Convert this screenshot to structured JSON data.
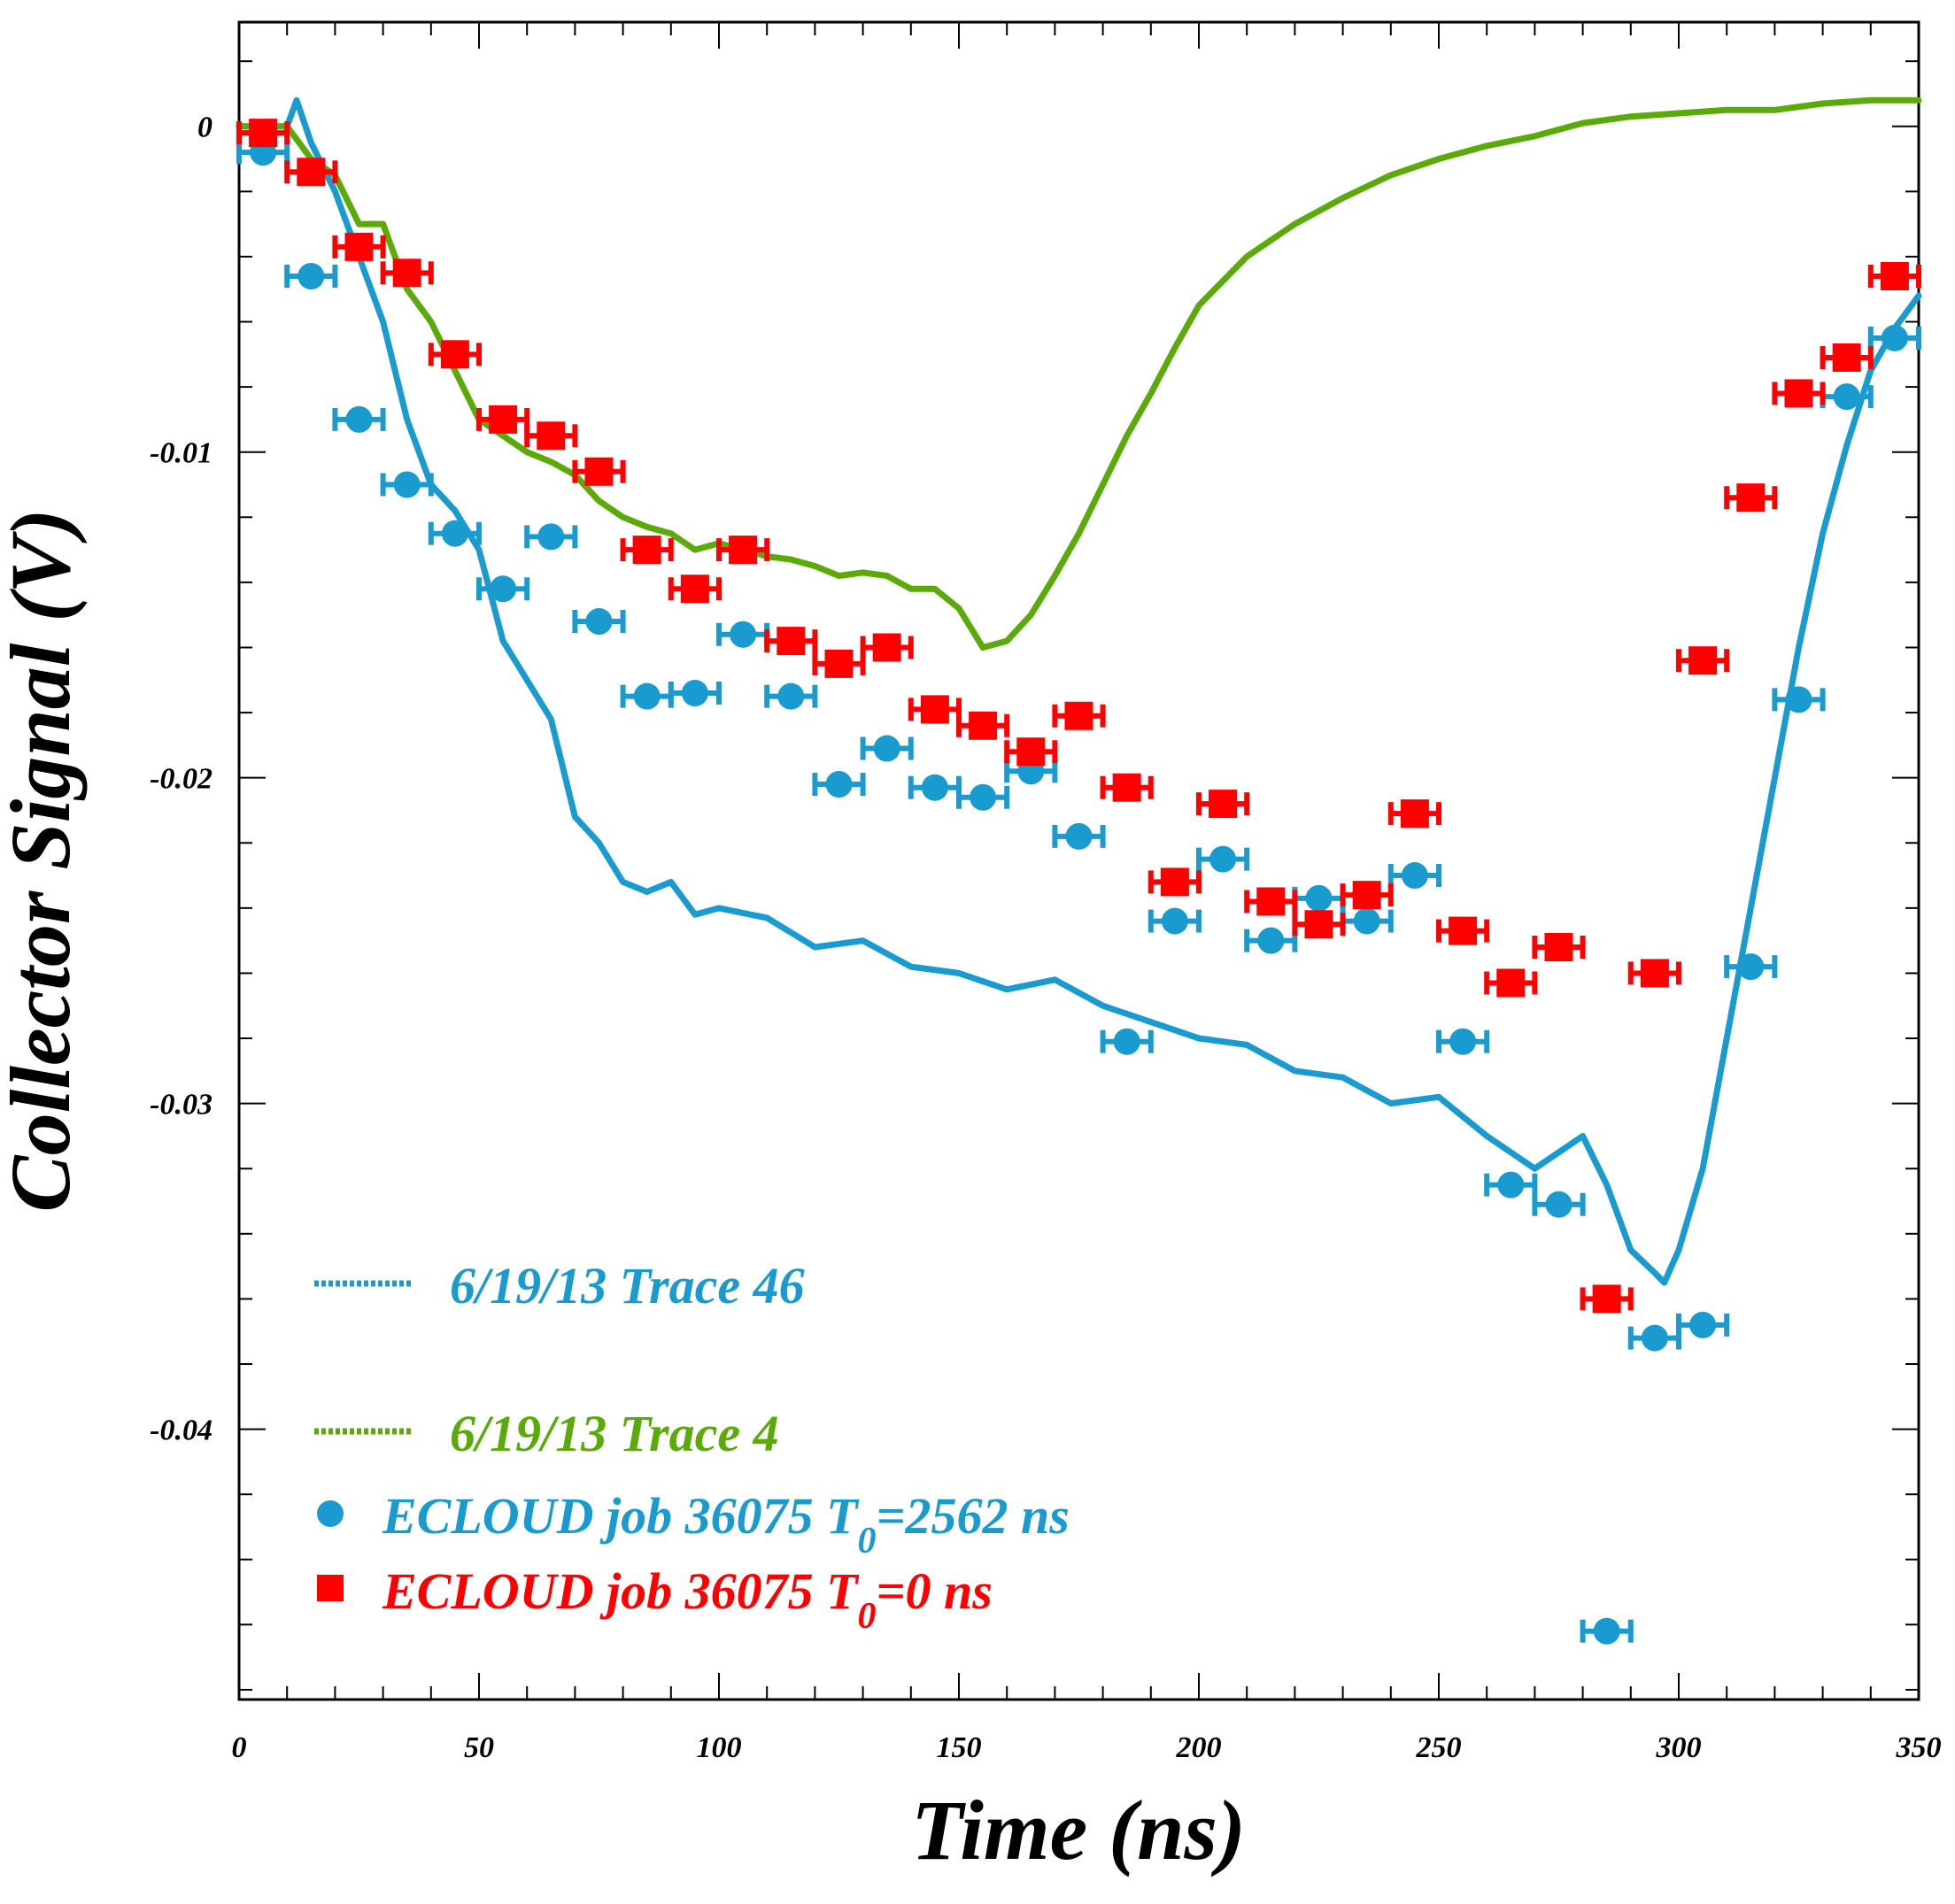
{
  "chart_data": {
    "type": "scatter",
    "xlabel": "Time (ns)",
    "ylabel": "Collector Signal (V)",
    "xlim": [
      0,
      350
    ],
    "ylim": [
      -0.0483,
      0.0032
    ],
    "xticks": [
      0,
      50,
      100,
      150,
      200,
      250,
      300,
      350
    ],
    "xtick_labels": [
      "0",
      "50",
      "100",
      "150",
      "200",
      "250",
      "300",
      "350"
    ],
    "yticks": [
      0,
      -0.01,
      -0.02,
      -0.03,
      -0.04
    ],
    "ytick_labels": [
      "0",
      "-0.01",
      "-0.02",
      "-0.03",
      "-0.04"
    ],
    "grid": false,
    "legend_position": "bottom-left",
    "series": [
      {
        "name": "6/19/13 Trace 46",
        "type": "line",
        "color": "#1a9bd0",
        "x": [
          0,
          5,
          10,
          12,
          15,
          20,
          25,
          30,
          35,
          40,
          45,
          50,
          55,
          60,
          65,
          70,
          75,
          80,
          85,
          90,
          95,
          100,
          110,
          120,
          130,
          140,
          150,
          160,
          170,
          180,
          190,
          200,
          210,
          220,
          230,
          240,
          250,
          260,
          270,
          280,
          285,
          290,
          295,
          297,
          300,
          305,
          310,
          315,
          320,
          325,
          330,
          335,
          340,
          345,
          350
        ],
        "y": [
          0,
          0,
          0,
          0.0008,
          -0.0005,
          -0.002,
          -0.004,
          -0.006,
          -0.009,
          -0.011,
          -0.0118,
          -0.013,
          -0.0158,
          -0.017,
          -0.0182,
          -0.0212,
          -0.022,
          -0.0232,
          -0.0235,
          -0.0232,
          -0.0242,
          -0.024,
          -0.0243,
          -0.0252,
          -0.025,
          -0.0258,
          -0.026,
          -0.0265,
          -0.0262,
          -0.027,
          -0.0275,
          -0.028,
          -0.0282,
          -0.029,
          -0.0292,
          -0.03,
          -0.0298,
          -0.031,
          -0.032,
          -0.031,
          -0.0325,
          -0.0345,
          -0.0352,
          -0.0355,
          -0.0345,
          -0.032,
          -0.028,
          -0.024,
          -0.02,
          -0.016,
          -0.0125,
          -0.0098,
          -0.0075,
          -0.0062,
          -0.0052
        ]
      },
      {
        "name": "6/19/13 Trace 4",
        "type": "line",
        "color": "#5aaa0a",
        "x": [
          0,
          5,
          10,
          15,
          20,
          25,
          30,
          35,
          40,
          45,
          50,
          55,
          60,
          65,
          70,
          75,
          80,
          85,
          90,
          95,
          100,
          105,
          110,
          115,
          120,
          125,
          130,
          135,
          140,
          145,
          150,
          155,
          160,
          165,
          170,
          175,
          180,
          185,
          190,
          195,
          200,
          210,
          220,
          230,
          240,
          250,
          260,
          270,
          280,
          290,
          300,
          310,
          320,
          330,
          340,
          350
        ],
        "y": [
          0,
          0,
          0,
          -0.001,
          -0.0015,
          -0.003,
          -0.003,
          -0.005,
          -0.006,
          -0.0075,
          -0.009,
          -0.0095,
          -0.01,
          -0.0103,
          -0.0107,
          -0.0115,
          -0.012,
          -0.0123,
          -0.0125,
          -0.013,
          -0.0128,
          -0.013,
          -0.0132,
          -0.0133,
          -0.0135,
          -0.0138,
          -0.0137,
          -0.0138,
          -0.0142,
          -0.0142,
          -0.0148,
          -0.016,
          -0.0158,
          -0.015,
          -0.0138,
          -0.0125,
          -0.011,
          -0.0095,
          -0.0082,
          -0.0068,
          -0.0055,
          -0.004,
          -0.003,
          -0.0022,
          -0.0015,
          -0.001,
          -0.0006,
          -0.0003,
          0.0001,
          0.0003,
          0.0004,
          0.0005,
          0.0005,
          0.0007,
          0.0008,
          0.0008
        ]
      },
      {
        "name": "ECLOUD job 36075 T0=2562 ns",
        "type": "scatter",
        "marker": "circle",
        "color": "#1a9bd0",
        "xerr": 5,
        "x": [
          5,
          15,
          25,
          35,
          45,
          55,
          65,
          75,
          85,
          95,
          105,
          115,
          125,
          135,
          145,
          155,
          165,
          175,
          185,
          195,
          205,
          215,
          225,
          235,
          245,
          255,
          265,
          275,
          285,
          295,
          305,
          315,
          325,
          335,
          345
        ],
        "y": [
          -0.0008,
          -0.0046,
          -0.009,
          -0.011,
          -0.0125,
          -0.0142,
          -0.0126,
          -0.0152,
          -0.0175,
          -0.0174,
          -0.0156,
          -0.0175,
          -0.0202,
          -0.0191,
          -0.0203,
          -0.0206,
          -0.0198,
          -0.0218,
          -0.0281,
          -0.0244,
          -0.0225,
          -0.025,
          -0.0237,
          -0.0244,
          -0.023,
          -0.0281,
          -0.0325,
          -0.0331,
          -0.0462,
          -0.0372,
          -0.0368,
          -0.0258,
          -0.0176,
          -0.0083,
          -0.0065
        ]
      },
      {
        "name": "ECLOUD job 36075 T0=0 ns",
        "type": "scatter",
        "marker": "square",
        "color": "#ff0000",
        "xerr": 5,
        "x": [
          5,
          15,
          25,
          35,
          45,
          55,
          65,
          75,
          85,
          95,
          105,
          115,
          125,
          135,
          145,
          155,
          165,
          175,
          185,
          195,
          205,
          215,
          225,
          235,
          245,
          255,
          265,
          275,
          285,
          295,
          305,
          315,
          325,
          335,
          345
        ],
        "y": [
          -0.0002,
          -0.0014,
          -0.0037,
          -0.0045,
          -0.007,
          -0.009,
          -0.0095,
          -0.0106,
          -0.013,
          -0.0142,
          -0.013,
          -0.0158,
          -0.0165,
          -0.016,
          -0.0179,
          -0.0184,
          -0.0192,
          -0.0181,
          -0.0203,
          -0.0232,
          -0.0208,
          -0.0238,
          -0.0245,
          -0.0236,
          -0.0211,
          -0.0247,
          -0.0263,
          -0.0252,
          -0.036,
          -0.026,
          -0.0164,
          -0.0114,
          -0.0082,
          -0.0071,
          -0.0046
        ]
      }
    ]
  },
  "legend": {
    "trace46": "6/19/13 Trace 46",
    "trace4": "6/19/13 Trace 4",
    "ecloud_a_prefix": "ECLOUD job 36075 T",
    "ecloud_a_sub": "0",
    "ecloud_a_suffix": "=2562 ns",
    "ecloud_b_prefix": "ECLOUD job 36075 T",
    "ecloud_b_sub": "0",
    "ecloud_b_suffix": "=0 ns"
  }
}
